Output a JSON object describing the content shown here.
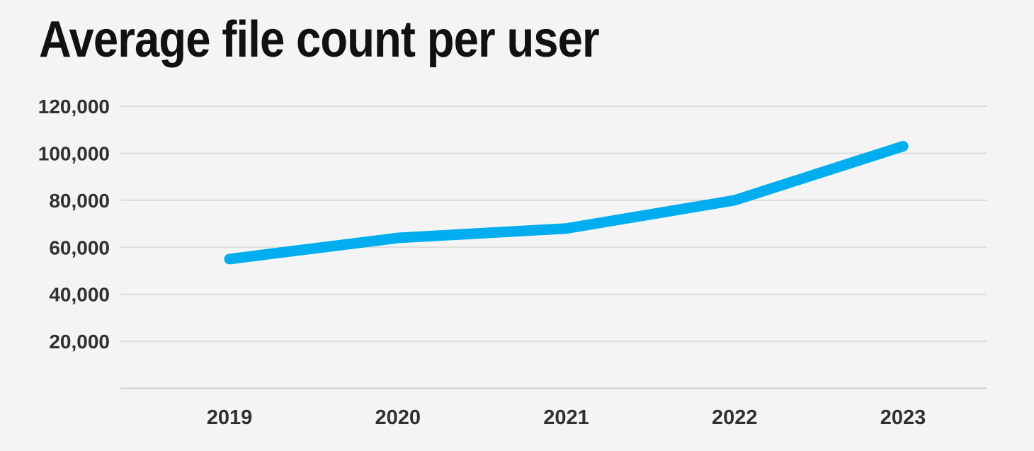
{
  "page": {
    "background_color": "#f4f4f4"
  },
  "header": {
    "title": "Average file count per user"
  },
  "chart_data": {
    "type": "line",
    "title": "Average file count per user",
    "categories": [
      "2019",
      "2020",
      "2021",
      "2022",
      "2023"
    ],
    "series": [
      {
        "name": "Average file count per user",
        "values": [
          55000,
          64000,
          68000,
          80000,
          103000
        ]
      }
    ],
    "xlabel": "",
    "ylabel": "",
    "ylim": [
      0,
      120000
    ],
    "ytick_interval": 20000,
    "yticks": [
      20000,
      40000,
      60000,
      80000,
      100000,
      120000
    ],
    "ytick_labels": [
      "20,000",
      "40,000",
      "60,000",
      "80,000",
      "100,000",
      "120,000"
    ],
    "grid": "horizontal",
    "legend_position": "none",
    "markers": "none",
    "line_color": "#00aeef",
    "line_width": 15,
    "grid_color": "#dcdcdc",
    "axis_line_color": "#d2d2d2",
    "tick_text_color": "#303030",
    "background_color": "#f4f4f4"
  }
}
